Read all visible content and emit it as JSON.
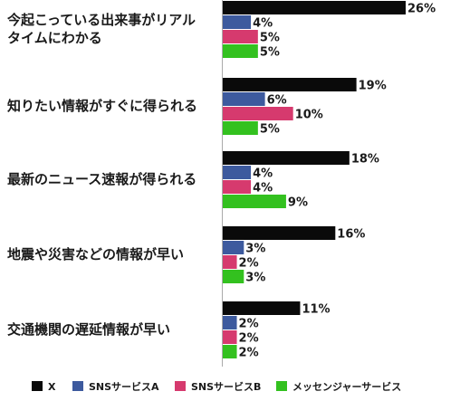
{
  "chart_data": {
    "type": "bar",
    "orientation": "horizontal",
    "categories": [
      [
        "今起こっている出来事がリアル",
        "タイムにわかる"
      ],
      [
        "知りたい情報がすぐに得られる"
      ],
      [
        "最新のニュース速報が得られる"
      ],
      [
        "地震や災害などの情報が早い"
      ],
      [
        "交通機関の遅延情報が早い"
      ]
    ],
    "series": [
      {
        "name": "X",
        "color": "#0a0a0a",
        "values": [
          26,
          19,
          18,
          16,
          11
        ]
      },
      {
        "name": "SNSサービスA",
        "color": "#3d5a9e",
        "values": [
          4,
          6,
          4,
          3,
          2
        ]
      },
      {
        "name": "SNSサービスB",
        "color": "#d63a6e",
        "values": [
          5,
          10,
          4,
          2,
          2
        ]
      },
      {
        "name": "メッセンジャーサービス",
        "color": "#33c11f",
        "values": [
          5,
          5,
          9,
          3,
          2
        ]
      }
    ],
    "value_suffix": "%",
    "xlim": [
      0,
      26
    ],
    "grid": false,
    "legend_position": "bottom",
    "title": "",
    "xlabel": "",
    "ylabel": ""
  }
}
